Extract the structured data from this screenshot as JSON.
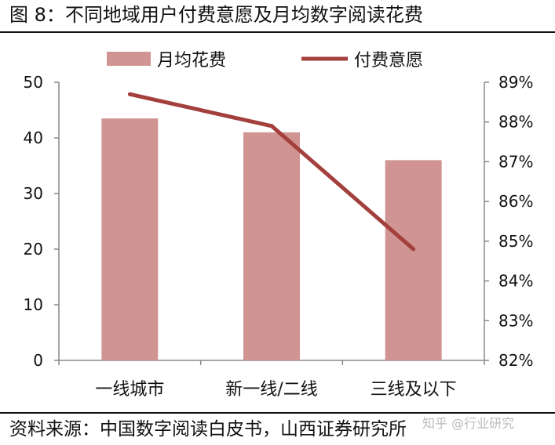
{
  "figure": {
    "title": "图 8：不同地域用户付费意愿及月均数字阅读花费",
    "source": "资料来源：中国数字阅读白皮书，山西证券研究所",
    "watermark": "知乎 @行业研究"
  },
  "chart_data": {
    "type": "bar",
    "categories": [
      "一线城市",
      "新一线/二线",
      "三线及以下"
    ],
    "series": [
      {
        "name": "月均花费",
        "type": "bar",
        "axis": "left",
        "values": [
          43.5,
          41,
          36
        ],
        "color": "#d09593"
      },
      {
        "name": "付费意愿",
        "type": "line",
        "axis": "right",
        "values": [
          88.7,
          87.9,
          84.8
        ],
        "unit": "%",
        "color": "#a33f3c"
      }
    ],
    "y_left": {
      "min": 0,
      "max": 50,
      "step": 10,
      "ticks": [
        "0",
        "10",
        "20",
        "30",
        "40",
        "50"
      ]
    },
    "y_right": {
      "min": 82,
      "max": 89,
      "step": 1,
      "ticks": [
        "82%",
        "83%",
        "84%",
        "85%",
        "86%",
        "87%",
        "88%",
        "89%"
      ]
    },
    "legend": {
      "placement": "top"
    },
    "grid": false
  }
}
